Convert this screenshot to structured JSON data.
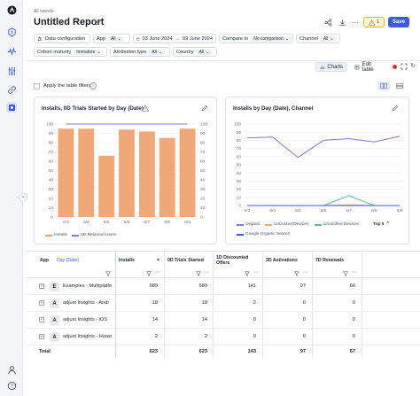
{
  "breadcrumb": "All reports",
  "title": "Untitled Report",
  "alerts_count": "1",
  "save_label": "Save",
  "filters_row1": {
    "data_config": "Data configuration",
    "app_label": "App",
    "app_value": "All",
    "date_start": "03 June 2024",
    "date_sep": "→",
    "date_end": "09 June 2024",
    "compare_label": "Compare to",
    "compare_value": "No comparison",
    "channel_label": "Channel",
    "channel_value": "All"
  },
  "filters_row2": {
    "cohort_label": "Cohort maturity",
    "cohort_value": "Immature",
    "attribution_label": "Attribution type",
    "attribution_value": "All",
    "country_label": "Country",
    "country_value": "All"
  },
  "toolbar": {
    "charts_label": "Charts",
    "edit_table_label": "Edit table",
    "apply_filters_label": "Apply the table filters"
  },
  "charts": [
    {
      "title": "Installs, 0D Trials Started by Day (Date)",
      "legend": [
        "Installs",
        "0D Retained Users"
      ]
    },
    {
      "title": "Installs by Day (Date), Channel",
      "legend": [
        "Organic",
        "Untrusted Devices",
        "Unverified Devices",
        "Google Organic Search"
      ],
      "top_label": "Top 5"
    }
  ],
  "chart_data": [
    {
      "type": "bar",
      "categories": [
        "6/3",
        "6/4",
        "6/5",
        "6/6",
        "6/7",
        "6/8",
        "6/9"
      ],
      "series": [
        {
          "name": "Installs",
          "type": "bar",
          "values": [
            95,
            95,
            66,
            94,
            92,
            85,
            95
          ]
        },
        {
          "name": "0D Retained Users",
          "type": "line",
          "values": [
            100,
            100,
            100,
            100,
            100,
            100,
            100
          ]
        }
      ],
      "y_ticks": [
        "0",
        "10",
        "20",
        "30",
        "40",
        "50",
        "60",
        "70",
        "80",
        "90",
        "100"
      ],
      "y_right_ticks": [
        "0",
        "10",
        "20",
        "30",
        "40",
        "50",
        "60",
        "70",
        "80",
        "90",
        "100"
      ],
      "ylim": [
        0,
        100
      ],
      "colors": {
        "Installs": "#f0a878",
        "0D Retained Users": "#8f74d8"
      },
      "grid": true,
      "legend_position": "bottom"
    },
    {
      "type": "line",
      "categories": [
        "6/3",
        "6/4",
        "6/5",
        "6/6",
        "6/7",
        "6/8",
        "6/9"
      ],
      "series": [
        {
          "name": "Organic",
          "values": [
            83,
            84,
            59,
            80,
            82,
            78,
            85
          ]
        },
        {
          "name": "Untrusted Devices",
          "values": [
            0,
            0,
            0,
            0,
            1,
            0,
            0
          ]
        },
        {
          "name": "Unverified Devices",
          "values": [
            0,
            0,
            0,
            0,
            12,
            0,
            0
          ]
        },
        {
          "name": "Google Organic Search",
          "values": [
            0,
            0,
            0,
            0,
            0,
            0,
            0
          ]
        }
      ],
      "y_ticks": [
        "0",
        "10",
        "20",
        "30",
        "40",
        "50",
        "60",
        "70",
        "80",
        "90",
        "100"
      ],
      "ylim": [
        0,
        100
      ],
      "colors": {
        "Organic": "#8f74d8",
        "Untrusted Devices": "#f0a878",
        "Unverified Devices": "#5bb6a8",
        "Google Organic Search": "#3b5bdb"
      },
      "grid": true,
      "legend_position": "bottom"
    }
  ],
  "table": {
    "headers": {
      "app": "App",
      "day": "Day (Date)",
      "installs": "Installs",
      "trials": "0D Trials Started",
      "discounted": "1D Discounted Offers",
      "activations": "3D Activations",
      "renewals": "7D Renewals"
    },
    "rows": [
      {
        "avatar": "E",
        "name": "Examples - Multiplatfo",
        "installs": "589",
        "trials": "589",
        "discounted": "141",
        "activations": "97",
        "renewals": "66"
      },
      {
        "avatar": "A",
        "name": "adjust Insights - Andr",
        "installs": "18",
        "trials": "18",
        "discounted": "2",
        "activations": "0",
        "renewals": "0"
      },
      {
        "avatar": "A",
        "name": "adjust Insights - iOS",
        "installs": "14",
        "trials": "14",
        "discounted": "0",
        "activations": "0",
        "renewals": "0"
      },
      {
        "avatar": "A",
        "name": "adjust Insights - Huaw",
        "installs": "2",
        "trials": "2",
        "discounted": "0",
        "activations": "0",
        "renewals": "0"
      }
    ],
    "total": {
      "label": "Total",
      "installs": "623",
      "trials": "623",
      "discounted": "143",
      "activations": "97",
      "renewals": "67"
    }
  },
  "colors": {
    "accent": "#3b5bdb",
    "bar": "#f0a878",
    "line_purple": "#8f74d8"
  }
}
